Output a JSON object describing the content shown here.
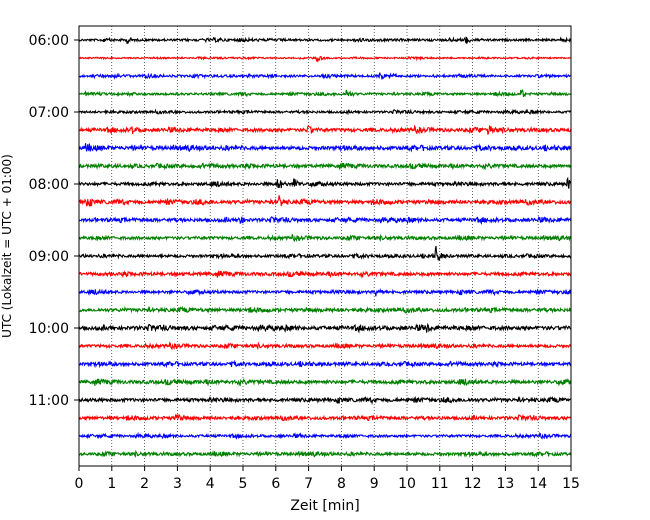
{
  "chart_data": {
    "type": "line",
    "title": "",
    "xlabel": "Zeit  [min]",
    "ylabel": "UTC (Lokalzeit = UTC + 01:00)",
    "xlim": [
      0,
      15
    ],
    "x_ticks": [
      "0",
      "1",
      "2",
      "3",
      "4",
      "5",
      "6",
      "7",
      "8",
      "9",
      "10",
      "11",
      "12",
      "13",
      "14",
      "15"
    ],
    "x_grid": "dotted",
    "y_tick_labels": [
      "06:00",
      "07:00",
      "08:00",
      "09:00",
      "10:00",
      "11:00"
    ],
    "trace_start_times": [
      "06:00",
      "06:15",
      "06:30",
      "06:45",
      "07:00",
      "07:15",
      "07:30",
      "07:45",
      "08:00",
      "08:15",
      "08:30",
      "08:45",
      "09:00",
      "09:15",
      "09:30",
      "09:45",
      "10:00",
      "10:15",
      "10:30",
      "10:45",
      "11:00",
      "11:15",
      "11:30",
      "11:45"
    ],
    "trace_colors": [
      "#000000",
      "#ff0000",
      "#0000ff",
      "#008000"
    ],
    "trace_amplitude": [
      1.0,
      0.6,
      1.0,
      1.0,
      1.0,
      1.5,
      1.6,
      1.5,
      1.4,
      1.6,
      1.5,
      1.3,
      1.2,
      1.5,
      1.3,
      1.5,
      1.7,
      1.3,
      1.4,
      1.6,
      1.5,
      1.4,
      1.1,
      1.3
    ],
    "events": [
      {
        "trace": 0,
        "time_min": 1.5,
        "amp": 3
      },
      {
        "trace": 0,
        "time_min": 11.8,
        "amp": 3
      },
      {
        "trace": 1,
        "time_min": 7.3,
        "amp": 3
      },
      {
        "trace": 2,
        "time_min": 9.2,
        "amp": 3
      },
      {
        "trace": 3,
        "time_min": 8.2,
        "amp": 4
      },
      {
        "trace": 3,
        "time_min": 13.5,
        "amp": 4
      },
      {
        "trace": 5,
        "time_min": 1.6,
        "amp": 4
      },
      {
        "trace": 5,
        "time_min": 7.0,
        "amp": 4
      },
      {
        "trace": 5,
        "time_min": 12.5,
        "amp": 6
      },
      {
        "trace": 6,
        "time_min": 0.2,
        "amp": 4
      },
      {
        "trace": 8,
        "time_min": 6.1,
        "amp": 6
      },
      {
        "trace": 8,
        "time_min": 6.6,
        "amp": 5
      },
      {
        "trace": 8,
        "time_min": 14.9,
        "amp": 5
      },
      {
        "trace": 9,
        "time_min": 0.2,
        "amp": 4
      },
      {
        "trace": 9,
        "time_min": 6.1,
        "amp": 7
      },
      {
        "trace": 10,
        "time_min": 4.9,
        "amp": 4
      },
      {
        "trace": 12,
        "time_min": 10.9,
        "amp": 10
      },
      {
        "trace": 14,
        "time_min": 9.1,
        "amp": 3
      },
      {
        "trace": 16,
        "time_min": 10.6,
        "amp": 3
      },
      {
        "trace": 21,
        "time_min": 3.0,
        "amp": 4
      }
    ]
  }
}
